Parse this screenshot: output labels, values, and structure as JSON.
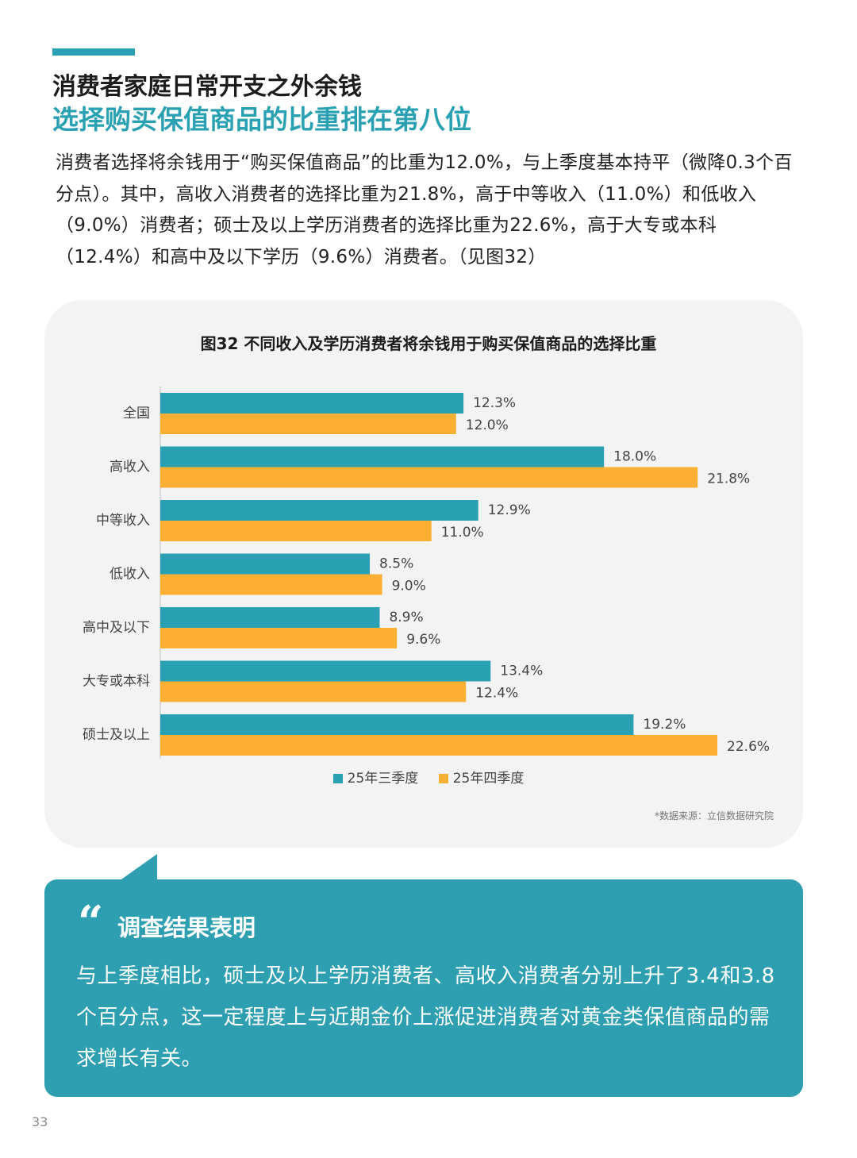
{
  "header": {
    "title_line1": "消费者家庭日常开支之外余钱",
    "title_line2": "选择购买保值商品的比重排在第八位"
  },
  "intro": "消费者选择将余钱用于“购买保值商品”的比重为12.0%，与上季度基本持平（微降0.3个百分点）。其中，高收入消费者的选择比重为21.8%，高于中等收入（11.0%）和低收入（9.0%）消费者；硕士及以上学历消费者的选择比重为22.6%，高于大专或本科（12.4%）和高中及以下学历（9.6%）消费者。（见图32）",
  "chart_data": {
    "type": "bar",
    "orientation": "horizontal",
    "title": "图32 不同收入及学历消费者将余钱用于购买保值商品的选择比重",
    "categories": [
      "全国",
      "高收入",
      "中等收入",
      "低收入",
      "高中及以下",
      "大专或本科",
      "硕士及以上"
    ],
    "series": [
      {
        "name": "25年三季度",
        "values": [
          12.3,
          18.0,
          12.9,
          8.5,
          8.9,
          13.4,
          19.2
        ],
        "labels": [
          "12.3%",
          "18.0%",
          "12.9%",
          "8.5%",
          "8.9%",
          "13.4%",
          "19.2%"
        ]
      },
      {
        "name": "25年四季度",
        "values": [
          12.0,
          21.8,
          11.0,
          9.0,
          9.6,
          12.4,
          22.6
        ],
        "labels": [
          "12.0%",
          "21.8%",
          "11.0%",
          "9.0%",
          "9.6%",
          "12.4%",
          "22.6%"
        ]
      }
    ],
    "xlim": [
      0,
      23.5
    ],
    "legend_position": "bottom",
    "grid": false,
    "source": "*数据来源：立信数据研究院"
  },
  "colors": {
    "accent": "#2aa1b3",
    "series_q3": "#2aa1b3",
    "series_q4": "#fbb034",
    "callout_bg": "#2d9fb0"
  },
  "callout": {
    "icon": "quote-icon",
    "title": "调查结果表明",
    "text": "与上季度相比，硕士及以上学历消费者、高收入消费者分别上升了3.4和3.8个百分点，这一定程度上与近期金价上涨促进消费者对黄金类保值商品的需求增长有关。"
  },
  "footer": {
    "page_number": "33"
  }
}
